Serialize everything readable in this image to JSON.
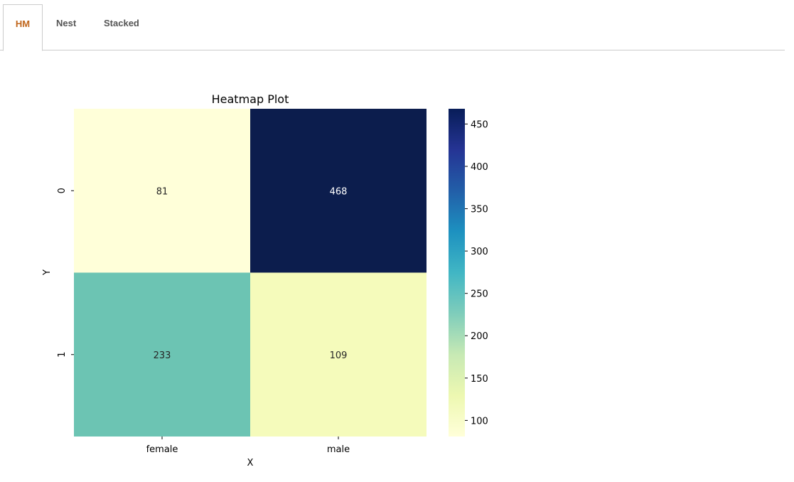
{
  "tabs": [
    {
      "label": "HM",
      "active": true
    },
    {
      "label": "Nest",
      "active": false
    },
    {
      "label": "Stacked",
      "active": false
    }
  ],
  "chart_data": {
    "type": "heatmap",
    "title": "Heatmap Plot",
    "xlabel": "X",
    "ylabel": "Y",
    "x_categories": [
      "female",
      "male"
    ],
    "y_categories": [
      "0",
      "1"
    ],
    "values": [
      [
        81,
        468
      ],
      [
        233,
        109
      ]
    ],
    "colormap": "YlGnBu",
    "colorbar": {
      "range": [
        81,
        468
      ],
      "ticks": [
        100,
        150,
        200,
        250,
        300,
        350,
        400,
        450
      ]
    },
    "cell_colors": [
      [
        "#ffffd9",
        "#0c1d4d"
      ],
      [
        "#6cc4b3",
        "#f5fbbb"
      ]
    ]
  }
}
